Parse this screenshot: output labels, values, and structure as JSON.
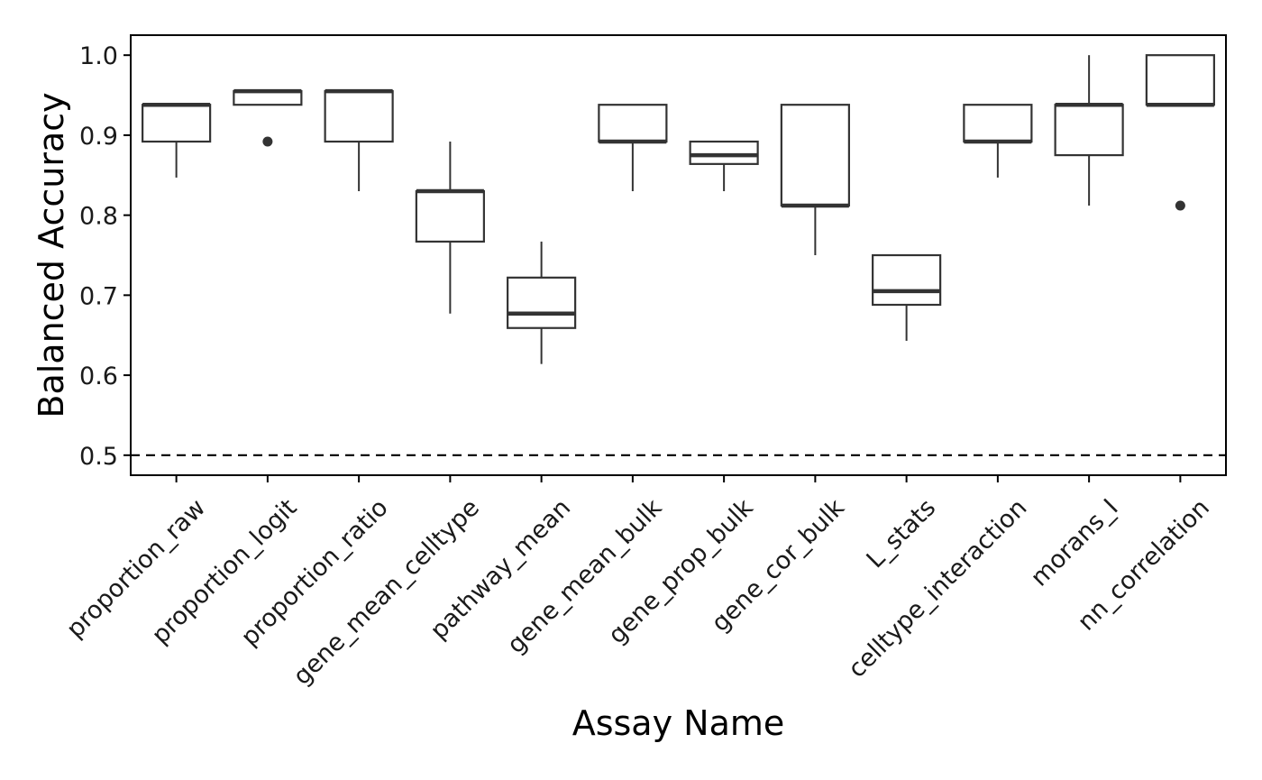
{
  "chart_data": {
    "type": "box",
    "xlabel": "Assay Name",
    "ylabel": "Balanced Accuracy",
    "ylim": [
      0.475,
      1.025
    ],
    "y_ticks": [
      "0.5",
      "0.6",
      "0.7",
      "0.8",
      "0.9",
      "1.0"
    ],
    "reference_line": {
      "y": 0.5,
      "style": "dashed"
    },
    "grid": false,
    "colors": {
      "box_stroke": "#333333",
      "axis": "#000000",
      "background": "#ffffff"
    },
    "categories": [
      "proportion_raw",
      "proportion_logit",
      "proportion_ratio",
      "gene_mean_celltype",
      "pathway_mean",
      "gene_mean_bulk",
      "gene_prop_bulk",
      "gene_cor_bulk",
      "L_stats",
      "celltype_interaction",
      "morans_I",
      "nn_correlation"
    ],
    "boxes": [
      {
        "whisker_low": 0.847,
        "q1": 0.892,
        "median": 0.938,
        "q3": 0.938,
        "whisker_high": 0.938,
        "outliers": []
      },
      {
        "whisker_low": 0.938,
        "q1": 0.938,
        "median": 0.955,
        "q3": 0.955,
        "whisker_high": 0.955,
        "outliers": [
          0.892
        ]
      },
      {
        "whisker_low": 0.83,
        "q1": 0.892,
        "median": 0.955,
        "q3": 0.955,
        "whisker_high": 0.955,
        "outliers": []
      },
      {
        "whisker_low": 0.677,
        "q1": 0.767,
        "median": 0.83,
        "q3": 0.83,
        "whisker_high": 0.892,
        "outliers": []
      },
      {
        "whisker_low": 0.614,
        "q1": 0.659,
        "median": 0.677,
        "q3": 0.722,
        "whisker_high": 0.767,
        "outliers": []
      },
      {
        "whisker_low": 0.83,
        "q1": 0.892,
        "median": 0.892,
        "q3": 0.938,
        "whisker_high": 0.938,
        "outliers": []
      },
      {
        "whisker_low": 0.83,
        "q1": 0.864,
        "median": 0.875,
        "q3": 0.892,
        "whisker_high": 0.892,
        "outliers": []
      },
      {
        "whisker_low": 0.75,
        "q1": 0.812,
        "median": 0.812,
        "q3": 0.938,
        "whisker_high": 0.938,
        "outliers": []
      },
      {
        "whisker_low": 0.643,
        "q1": 0.688,
        "median": 0.705,
        "q3": 0.75,
        "whisker_high": 0.75,
        "outliers": []
      },
      {
        "whisker_low": 0.847,
        "q1": 0.892,
        "median": 0.892,
        "q3": 0.938,
        "whisker_high": 0.938,
        "outliers": []
      },
      {
        "whisker_low": 0.812,
        "q1": 0.875,
        "median": 0.938,
        "q3": 0.938,
        "whisker_high": 1.0,
        "outliers": []
      },
      {
        "whisker_low": 0.938,
        "q1": 0.938,
        "median": 0.938,
        "q3": 1.0,
        "whisker_high": 1.0,
        "outliers": [
          0.812
        ]
      }
    ]
  }
}
